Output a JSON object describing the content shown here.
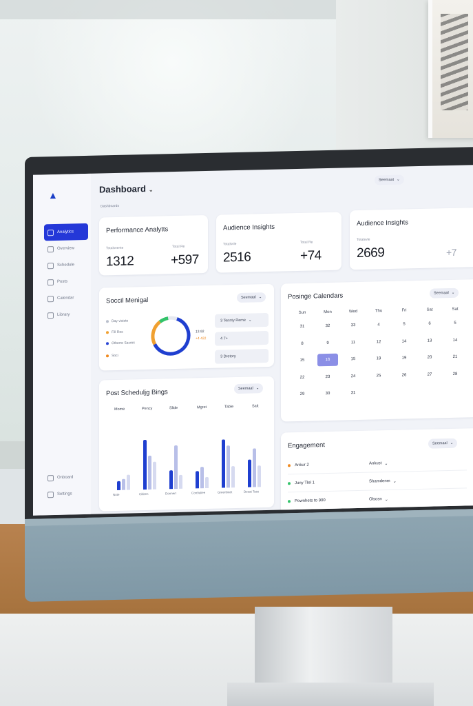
{
  "header": {
    "title": "Dashboard",
    "breadcrumb": "Dashboards",
    "dropdown_label": "Seemaat",
    "avatar_initial": ""
  },
  "sidebar": {
    "items": [
      {
        "label": "Analytics",
        "active": true
      },
      {
        "label": "Overview",
        "active": false
      },
      {
        "label": "Schedule",
        "active": false
      },
      {
        "label": "Posts",
        "active": false
      },
      {
        "label": "Calendar",
        "active": false
      },
      {
        "label": "Library",
        "active": false
      }
    ],
    "bottom_items": [
      {
        "label": "Onboard"
      },
      {
        "label": "Settings"
      }
    ]
  },
  "stats": [
    {
      "title": "Performance Analytts",
      "left_label": "Totalsvente",
      "left_value": "1312",
      "right_label": "Total Re",
      "right_value": "+597"
    },
    {
      "title": "Audience Insights",
      "left_label": "Totalsvle",
      "left_value": "2516",
      "right_label": "Total Re",
      "right_value": "+74"
    },
    {
      "title": "Audience Insights",
      "left_label": "Totalsvle",
      "left_value": "2669",
      "right_label": "",
      "right_value": "+7"
    }
  ],
  "social": {
    "title": "Soccil Menigal",
    "dropdown": "Seemaal",
    "legend": [
      {
        "label": "Day visiste",
        "color": "#b9bfcc"
      },
      {
        "label": "Fill Res",
        "color": "#f0a030"
      },
      {
        "label": "Otherre Sacres",
        "color": "#2a45d4"
      },
      {
        "label": "Soci",
        "color": "#f08a20"
      }
    ],
    "donut": [
      {
        "name": "blue",
        "value": 62,
        "color": "#1f3fd0"
      },
      {
        "name": "orange",
        "value": 22,
        "color": "#f0a030"
      },
      {
        "name": "green",
        "value": 8,
        "color": "#33c36a"
      },
      {
        "name": "gap",
        "value": 8,
        "color": "#e6e9f0"
      }
    ],
    "donut_labels": [
      "13.92",
      "+4 422"
    ],
    "chips": [
      "3 Tennty Reme",
      "4 7+",
      "3 Dretory"
    ]
  },
  "calendar": {
    "title": "Posinge Calendars",
    "dropdown": "Seemaal",
    "days": [
      "Sun",
      "Mon",
      "Wed",
      "Thu",
      "Fri",
      "Sat",
      "Sat"
    ],
    "rows": [
      [
        "31",
        "32",
        "33",
        "4",
        "5",
        "6",
        "5"
      ],
      [
        "8",
        "9",
        "11",
        "12",
        "14",
        "13",
        "14"
      ],
      [
        "15",
        "16",
        "15",
        "19",
        "19",
        "20",
        "21"
      ],
      [
        "22",
        "23",
        "24",
        "25",
        "26",
        "27",
        "28"
      ],
      [
        "29",
        "30",
        "31",
        "",
        "",
        "",
        ""
      ]
    ],
    "selected": "16"
  },
  "scheduling": {
    "title": "Post Scheduljg Bings",
    "dropdown": "Seemaal",
    "columns": [
      "Mome",
      "Pency",
      "Slide",
      "Mgret",
      "Table",
      "Salt"
    ],
    "y_ticks": [
      "",
      "",
      "",
      "",
      ""
    ],
    "groups": [
      "Note",
      "Ciiliten",
      "Donnert",
      "Con9uliee",
      "Greenbaet",
      "Desat Tass"
    ]
  },
  "chart_data": {
    "type": "bar",
    "title": "Post Scheduljg Bings",
    "categories": [
      "Note",
      "Ciiliten",
      "Donnert",
      "Con9uliee",
      "Greenbaet",
      "Desat Tass"
    ],
    "series": [
      {
        "values": [
          15,
          80,
          30,
          28,
          78,
          45
        ],
        "color": "#1f3fd0"
      },
      {
        "values": [
          18,
          55,
          70,
          35,
          68,
          62
        ],
        "color": "#b8bfe8"
      },
      {
        "values": [
          25,
          45,
          22,
          18,
          35,
          35
        ],
        "color": "#d6daf0"
      }
    ],
    "ylim": [
      0,
      100
    ]
  },
  "engagement": {
    "title": "Engagement",
    "dropdown": "Seemaal",
    "rows": [
      {
        "label": "Ankur 2",
        "dot": "#f08a20",
        "value": "Ankust"
      },
      {
        "label": "Juny Tlel 1",
        "dot": "#33c36a",
        "value": "Shamdenm"
      },
      {
        "label": "Pownhets to 900",
        "dot": "#33c36a",
        "value": "Olsosn"
      }
    ]
  },
  "icons": {
    "logo": "logo-icon",
    "search": "search-icon",
    "notifications": "bell-icon"
  }
}
